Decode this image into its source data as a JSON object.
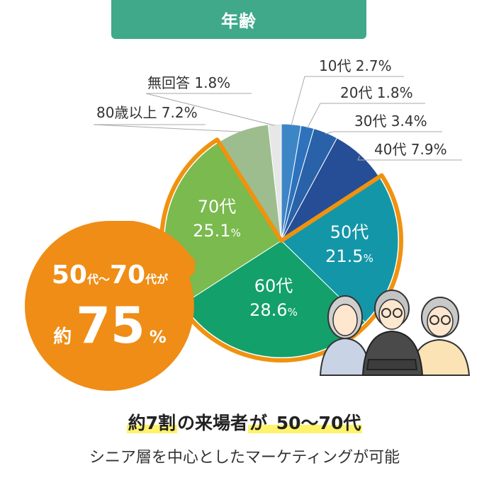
{
  "header": {
    "title": "年齢"
  },
  "chart_data": {
    "type": "pie",
    "title": "年齢",
    "slices": [
      {
        "label": "10代",
        "value": 2.7,
        "color": "#3d86c6",
        "display": "10代 2.7%"
      },
      {
        "label": "20代",
        "value": 1.8,
        "color": "#2e72bd",
        "display": "20代 1.8%"
      },
      {
        "label": "30代",
        "value": 3.4,
        "color": "#2962a8",
        "display": "30代 3.4%"
      },
      {
        "label": "40代",
        "value": 7.9,
        "color": "#254e96",
        "display": "40代 7.9%"
      },
      {
        "label": "50代",
        "value": 21.5,
        "color": "#1397a8",
        "display_age": "50代",
        "display_pct": "21.5",
        "unit": "%"
      },
      {
        "label": "60代",
        "value": 28.6,
        "color": "#13a06a",
        "display_age": "60代",
        "display_pct": "28.6",
        "unit": "%"
      },
      {
        "label": "70代",
        "value": 25.1,
        "color": "#7aba4e",
        "display_age": "70代",
        "display_pct": "25.1",
        "unit": "%"
      },
      {
        "label": "80歳以上",
        "value": 7.2,
        "color": "#9dbd8e",
        "display": "80歳以上  7.2%"
      },
      {
        "label": "無回答",
        "value": 1.8,
        "color": "#e7e7e7",
        "display": "無回答  1.8%"
      }
    ],
    "highlight_color": "#f0920f"
  },
  "callout": {
    "line1_a": "50",
    "line1_b": "代～",
    "line1_c": "70",
    "line1_d": "代が",
    "line2_a": "約",
    "line2_b": "75",
    "line2_c": "%",
    "color": "#ef8d16"
  },
  "caption": {
    "line1_hl1": "約7割",
    "line1_mid": "の来場者",
    "line1_hl2": "が",
    "line1_end": " 50～70代",
    "line2": "シニア層を中心としたマーケティングが可能"
  }
}
